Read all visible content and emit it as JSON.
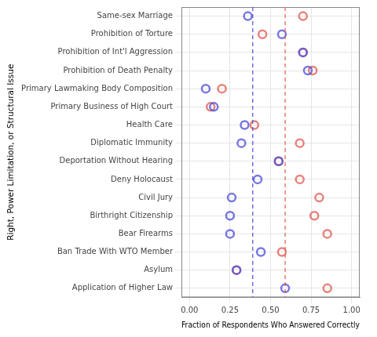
{
  "chart_data": {
    "type": "scatter",
    "x_label": "Fraction of Respondents Who Answered Correctly",
    "y_label": "Right, Power Limitation, or Structural Issue",
    "categories": [
      "Same-sex Marriage",
      "Prohibition of Torture",
      "Prohibition of Int'l Aggression",
      "Prohibition of Death Penalty",
      "Primary Lawmaking Body Composition",
      "Primary Business of High Court",
      "Health Care",
      "Diplomatic Immunity",
      "Deportation Without Hearing",
      "Deny Holocaust",
      "Civil Jury",
      "Birthright Citizenship",
      "Bear Firearms",
      "Ban Trade With WTO Member",
      "Asylum",
      "Application of Higher Law"
    ],
    "series": [
      {
        "color": "#4b4bd9",
        "marker": "circle",
        "line_style": "dashed",
        "vline": 0.39,
        "values": [
          0.36,
          0.57,
          0.7,
          0.73,
          0.1,
          0.15,
          0.34,
          0.32,
          0.55,
          0.42,
          0.26,
          0.25,
          0.25,
          0.44,
          0.29,
          0.59
        ]
      },
      {
        "color": "#e05a50",
        "marker": "circle",
        "line_style": "dashed",
        "vline": 0.59,
        "values": [
          0.7,
          0.45,
          0.7,
          0.76,
          0.2,
          0.13,
          0.4,
          0.68,
          0.55,
          0.68,
          0.8,
          0.77,
          0.85,
          0.57,
          0.29,
          0.85
        ]
      }
    ],
    "xlim": [
      -0.05,
      1.05
    ],
    "xticks": [
      {
        "value": 0,
        "label": "0.00"
      },
      {
        "value": 0.25,
        "label": "0.25"
      },
      {
        "value": 0.5,
        "label": "0.50"
      },
      {
        "value": 0.75,
        "label": "0.75"
      },
      {
        "value": 1,
        "label": "1.00"
      }
    ],
    "grid": true
  }
}
